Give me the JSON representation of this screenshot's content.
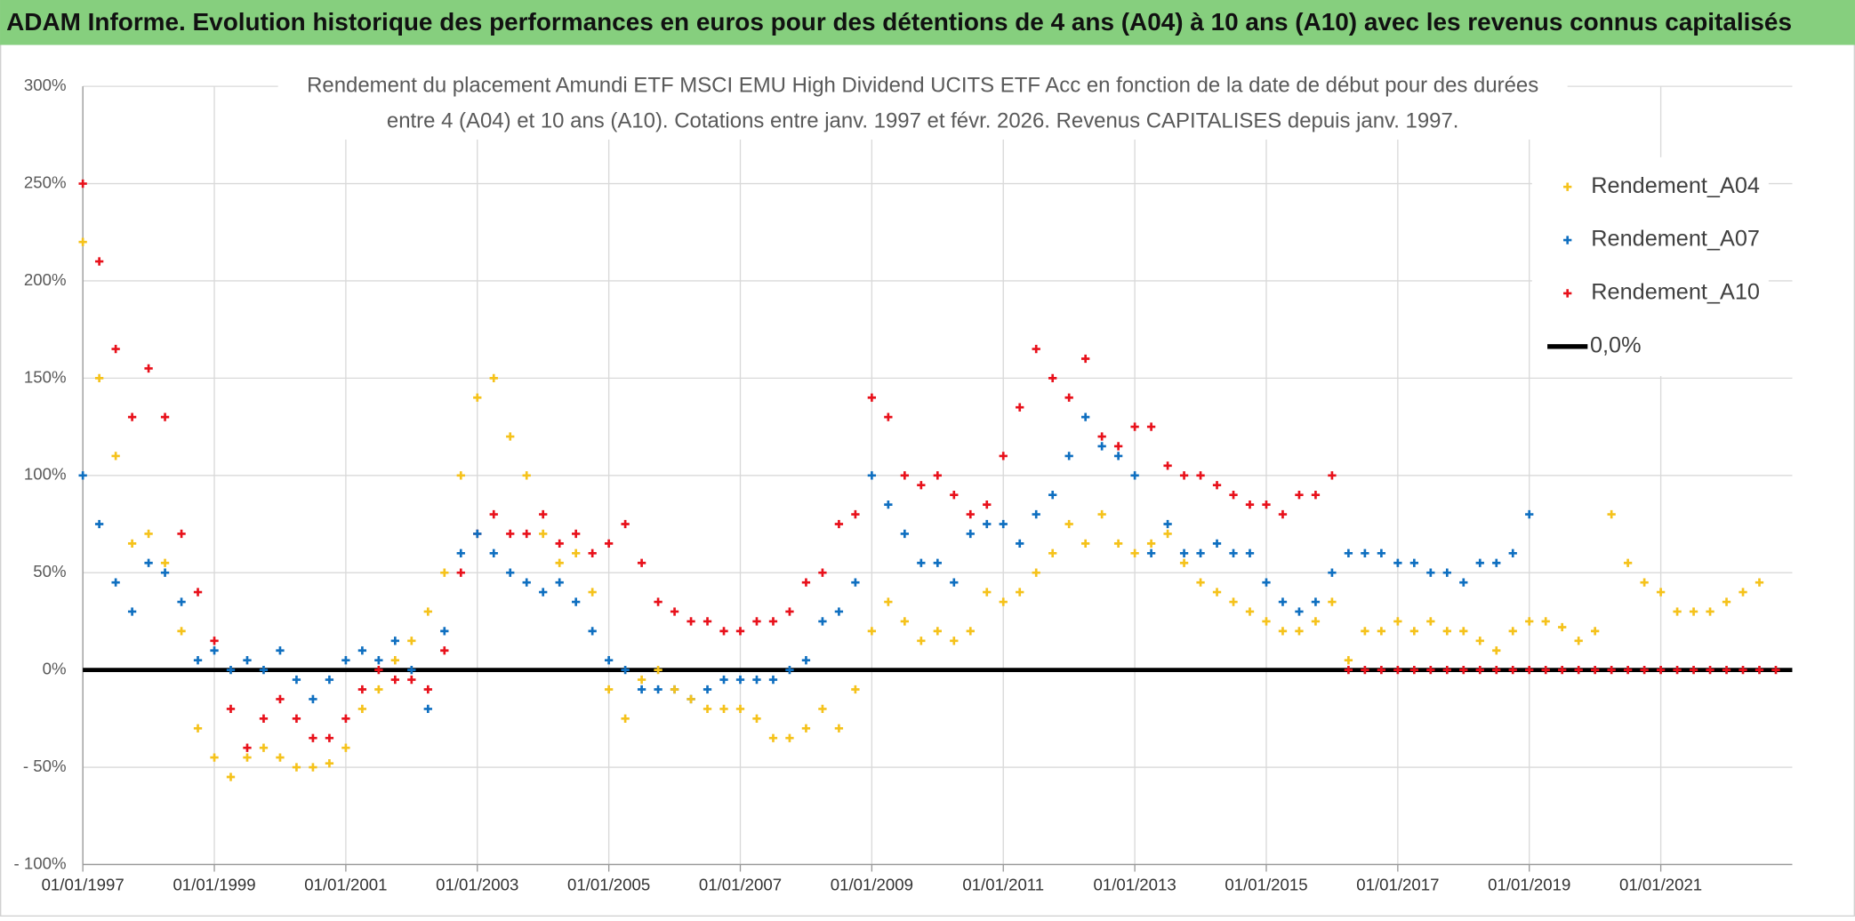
{
  "chart_data": {
    "type": "scatter",
    "header": "ADAM Informe. Evolution historique des performances en euros pour des détentions de 4 ans (A04) à 10 ans (A10) avec les revenus connus capitalisés",
    "title": [
      "Rendement du placement Amundi ETF MSCI EMU High Dividend UCITS ETF Acc en fonction de la date de début pour des durées",
      "entre 4 (A04) et 10 ans (A10). Cotations entre janv. 1997 et févr. 2026. Revenus CAPITALISES depuis janv. 1997."
    ],
    "x": [
      "01/01/1997",
      "01/04/1997",
      "01/07/1997",
      "01/10/1997",
      "01/01/1998",
      "01/04/1998",
      "01/07/1998",
      "01/10/1998",
      "01/01/1999",
      "01/04/1999",
      "01/07/1999",
      "01/10/1999",
      "01/01/2000",
      "01/04/2000",
      "01/07/2000",
      "01/10/2000",
      "01/01/2001",
      "01/04/2001",
      "01/07/2001",
      "01/10/2001",
      "01/01/2002",
      "01/04/2002",
      "01/07/2002",
      "01/10/2002",
      "01/01/2003",
      "01/04/2003",
      "01/07/2003",
      "01/10/2003",
      "01/01/2004",
      "01/04/2004",
      "01/07/2004",
      "01/10/2004",
      "01/01/2005",
      "01/04/2005",
      "01/07/2005",
      "01/10/2005",
      "01/01/2006",
      "01/04/2006",
      "01/07/2006",
      "01/10/2006",
      "01/01/2007",
      "01/04/2007",
      "01/07/2007",
      "01/10/2007",
      "01/01/2008",
      "01/04/2008",
      "01/07/2008",
      "01/10/2008",
      "01/01/2009",
      "01/04/2009",
      "01/07/2009",
      "01/10/2009",
      "01/01/2010",
      "01/04/2010",
      "01/07/2010",
      "01/10/2010",
      "01/01/2011",
      "01/04/2011",
      "01/07/2011",
      "01/10/2011",
      "01/01/2012",
      "01/04/2012",
      "01/07/2012",
      "01/10/2012",
      "01/01/2013",
      "01/04/2013",
      "01/07/2013",
      "01/10/2013",
      "01/01/2014",
      "01/04/2014",
      "01/07/2014",
      "01/10/2014",
      "01/01/2015",
      "01/04/2015",
      "01/07/2015",
      "01/10/2015",
      "01/01/2016",
      "01/04/2016",
      "01/07/2016",
      "01/10/2016",
      "01/01/2017",
      "01/04/2017",
      "01/07/2017",
      "01/10/2017",
      "01/01/2018",
      "01/04/2018",
      "01/07/2018",
      "01/10/2018",
      "01/01/2019",
      "01/04/2019",
      "01/07/2019",
      "01/10/2019",
      "01/01/2020",
      "01/04/2020",
      "01/07/2020",
      "01/10/2020",
      "01/01/2021",
      "01/04/2021",
      "01/07/2021",
      "01/10/2021",
      "01/01/2022",
      "01/04/2022",
      "01/07/2022",
      "01/10/2022"
    ],
    "series": [
      {
        "name": "Rendement_A04",
        "color": "#f5c21b",
        "values": [
          220,
          150,
          110,
          65,
          70,
          55,
          20,
          -30,
          -45,
          -55,
          -45,
          -40,
          -45,
          -50,
          -50,
          -48,
          -40,
          -20,
          -10,
          5,
          15,
          30,
          50,
          100,
          140,
          150,
          120,
          100,
          70,
          55,
          60,
          40,
          -10,
          -25,
          -5,
          0,
          -10,
          -15,
          -20,
          -20,
          -20,
          -25,
          -35,
          -35,
          -30,
          -20,
          -30,
          -10,
          20,
          35,
          25,
          15,
          20,
          15,
          20,
          40,
          35,
          40,
          50,
          60,
          75,
          65,
          80,
          65,
          60,
          65,
          70,
          55,
          45,
          40,
          35,
          30,
          25,
          20,
          20,
          25,
          35,
          5,
          20,
          20,
          25,
          20,
          25,
          20,
          20,
          15,
          10,
          20,
          25,
          25,
          22,
          15,
          20,
          80,
          55,
          45,
          40,
          30,
          30,
          30,
          35,
          40,
          45,
          null
        ]
      },
      {
        "name": "Rendement_A07",
        "color": "#0f6fc0",
        "values": [
          100,
          75,
          45,
          30,
          55,
          50,
          35,
          5,
          10,
          0,
          5,
          0,
          10,
          -5,
          -15,
          -5,
          5,
          10,
          5,
          15,
          0,
          -20,
          20,
          60,
          70,
          60,
          50,
          45,
          40,
          45,
          35,
          20,
          5,
          0,
          -10,
          -10,
          -10,
          -15,
          -10,
          -5,
          -5,
          -5,
          -5,
          0,
          5,
          25,
          30,
          45,
          100,
          85,
          70,
          55,
          55,
          45,
          70,
          75,
          75,
          65,
          80,
          90,
          110,
          130,
          115,
          110,
          100,
          60,
          75,
          60,
          60,
          65,
          60,
          60,
          45,
          35,
          30,
          35,
          50,
          60,
          60,
          60,
          55,
          55,
          50,
          50,
          45,
          55,
          55,
          60,
          80,
          null,
          null,
          null,
          null,
          null,
          null,
          null,
          null,
          null,
          null,
          null,
          null,
          null,
          null,
          null
        ]
      },
      {
        "name": "Rendement_A10",
        "color": "#e8111b",
        "values": [
          250,
          210,
          165,
          130,
          155,
          130,
          70,
          40,
          15,
          -20,
          -40,
          -25,
          -15,
          -25,
          -35,
          -35,
          -25,
          -10,
          0,
          -5,
          -5,
          -10,
          10,
          50,
          70,
          80,
          70,
          70,
          80,
          65,
          70,
          60,
          65,
          75,
          55,
          35,
          30,
          25,
          25,
          20,
          20,
          25,
          25,
          30,
          45,
          50,
          75,
          80,
          140,
          130,
          100,
          95,
          100,
          90,
          80,
          85,
          110,
          135,
          165,
          150,
          140,
          160,
          120,
          115,
          125,
          125,
          105,
          100,
          100,
          95,
          90,
          85,
          85,
          80,
          90,
          90,
          100,
          0,
          0,
          0,
          0,
          0,
          0,
          0,
          0,
          0,
          0,
          0,
          0,
          0,
          0,
          0,
          0,
          0,
          0,
          0,
          0,
          0,
          0,
          0,
          0,
          0,
          0,
          0
        ]
      },
      {
        "name": "0,0%",
        "color": "#000000",
        "type": "line",
        "x": [
          "01/01/1997",
          "01/01/2023"
        ],
        "values": [
          0,
          0
        ]
      }
    ],
    "xlim": [
      "01/01/1997",
      "01/01/2023"
    ],
    "xticks": [
      "01/01/1997",
      "01/01/1999",
      "01/01/2001",
      "01/01/2003",
      "01/01/2005",
      "01/01/2007",
      "01/01/2009",
      "01/01/2011",
      "01/01/2013",
      "01/01/2015",
      "01/01/2017",
      "01/01/2019",
      "01/01/2021"
    ],
    "ylim": [
      -100,
      300
    ],
    "yticks": [
      {
        "value": 300,
        "label": "300%"
      },
      {
        "value": 250,
        "label": "250%"
      },
      {
        "value": 200,
        "label": "200%"
      },
      {
        "value": 150,
        "label": "150%"
      },
      {
        "value": 100,
        "label": "100%"
      },
      {
        "value": 50,
        "label": "50%"
      },
      {
        "value": 0,
        "label": "0%"
      },
      {
        "value": -50,
        "label": "- 50%"
      },
      {
        "value": -100,
        "label": "- 100%"
      }
    ],
    "grid": true,
    "legend": "top-right"
  }
}
